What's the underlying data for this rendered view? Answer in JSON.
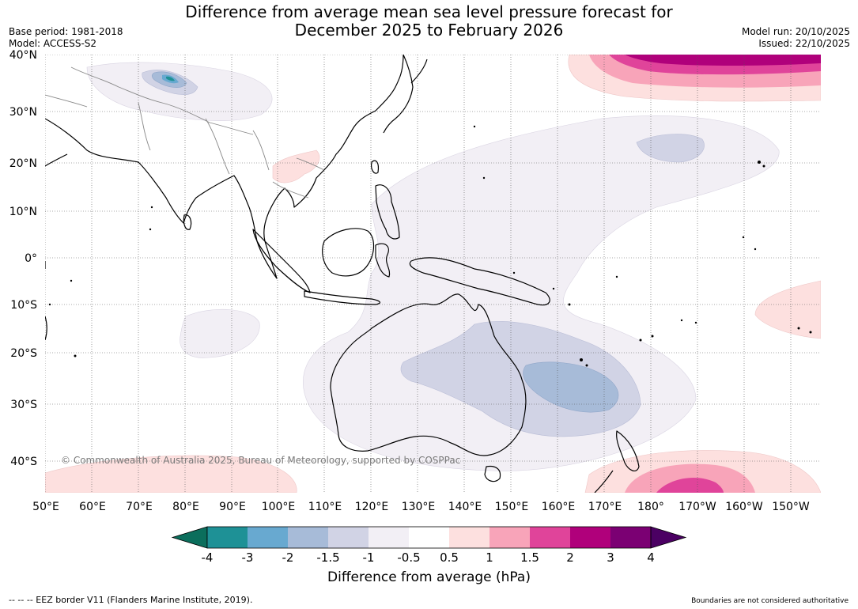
{
  "title": {
    "line1": "Difference from average mean sea level pressure forecast for",
    "line2": "December 2025 to February 2026"
  },
  "meta_left": {
    "base_period": "Base period: 1981-2018",
    "model": "Model: ACCESS-S2"
  },
  "meta_right": {
    "model_run": "Model run: 20/10/2025",
    "issued": "Issued: 22/10/2025"
  },
  "map": {
    "lat_labels": [
      "40°N",
      "30°N",
      "20°N",
      "10°N",
      "0°",
      "10°S",
      "20°S",
      "30°S",
      "40°S"
    ],
    "lon_labels": [
      "50°E",
      "60°E",
      "70°E",
      "80°E",
      "90°E",
      "100°E",
      "110°E",
      "120°E",
      "130°E",
      "140°E",
      "150°E",
      "160°E",
      "170°E",
      "180°",
      "170°W",
      "160°W",
      "150°W"
    ],
    "copyright": "© Commonwealth of Australia 2025, Bureau of Meteorology, supported by COSPPac",
    "graticule": "dotted"
  },
  "colorbar": {
    "tick_labels": [
      "-4",
      "-3",
      "-2",
      "-1.5",
      "-1",
      "-0.5",
      "0.5",
      "1",
      "1.5",
      "2",
      "3",
      "4"
    ],
    "colors": [
      "#0b6e5c",
      "#1e9196",
      "#68a9d0",
      "#a7bbd8",
      "#d1d3e5",
      "#f2eff5",
      "#ffffff",
      "#fde0df",
      "#f8a4b9",
      "#e0449a",
      "#b0007b",
      "#7b0073",
      "#4b0063"
    ],
    "label": "Difference from average (hPa)"
  },
  "footer": {
    "left": "--  --  -- EEZ border V11 (Flanders Marine Institute, 2019).",
    "right": "Boundaries are not considered authoritative"
  }
}
